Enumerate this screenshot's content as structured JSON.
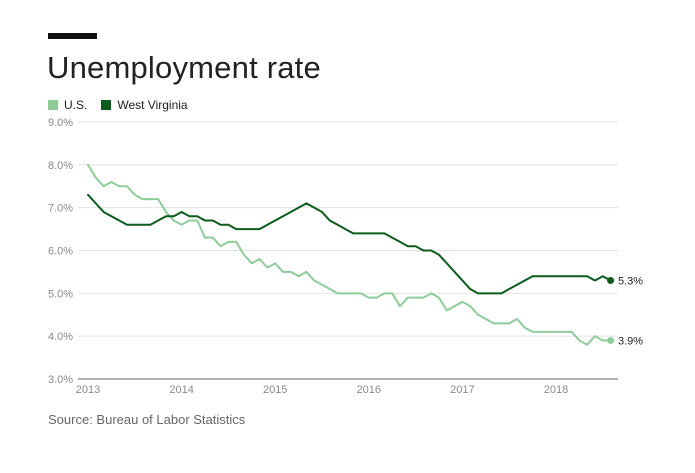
{
  "header": {
    "title": "Unemployment rate"
  },
  "footer": {
    "source": "Source: Bureau of Labor Statistics"
  },
  "colors": {
    "us": "#8fcc9a",
    "wv": "#0b5b1c",
    "grid": "#e2e2e2",
    "axis": "#666666",
    "accent_bar": "#111111"
  },
  "chart_data": {
    "type": "line",
    "title": "Unemployment rate",
    "xlabel": "",
    "ylabel": "",
    "x_start": "2013-01",
    "x_end": "2018-08",
    "x_ticks": [
      "2013",
      "2014",
      "2015",
      "2016",
      "2017",
      "2018"
    ],
    "y_ticks": [
      "3.0%",
      "4.0%",
      "5.0%",
      "6.0%",
      "7.0%",
      "8.0%",
      "9.0%"
    ],
    "ylim": [
      3.0,
      9.0
    ],
    "grid": true,
    "legend_position": "top-left",
    "x": [
      "2013-01",
      "2013-02",
      "2013-03",
      "2013-04",
      "2013-05",
      "2013-06",
      "2013-07",
      "2013-08",
      "2013-09",
      "2013-10",
      "2013-11",
      "2013-12",
      "2014-01",
      "2014-02",
      "2014-03",
      "2014-04",
      "2014-05",
      "2014-06",
      "2014-07",
      "2014-08",
      "2014-09",
      "2014-10",
      "2014-11",
      "2014-12",
      "2015-01",
      "2015-02",
      "2015-03",
      "2015-04",
      "2015-05",
      "2015-06",
      "2015-07",
      "2015-08",
      "2015-09",
      "2015-10",
      "2015-11",
      "2015-12",
      "2016-01",
      "2016-02",
      "2016-03",
      "2016-04",
      "2016-05",
      "2016-06",
      "2016-07",
      "2016-08",
      "2016-09",
      "2016-10",
      "2016-11",
      "2016-12",
      "2017-01",
      "2017-02",
      "2017-03",
      "2017-04",
      "2017-05",
      "2017-06",
      "2017-07",
      "2017-08",
      "2017-09",
      "2017-10",
      "2017-11",
      "2017-12",
      "2018-01",
      "2018-02",
      "2018-03",
      "2018-04",
      "2018-05",
      "2018-06",
      "2018-07",
      "2018-08"
    ],
    "series": [
      {
        "name": "U.S.",
        "color": "#8fcc9a",
        "end_label": "3.9%",
        "values": [
          8.0,
          7.7,
          7.5,
          7.6,
          7.5,
          7.5,
          7.3,
          7.2,
          7.2,
          7.2,
          6.9,
          6.7,
          6.6,
          6.7,
          6.7,
          6.3,
          6.3,
          6.1,
          6.2,
          6.2,
          5.9,
          5.7,
          5.8,
          5.6,
          5.7,
          5.5,
          5.5,
          5.4,
          5.5,
          5.3,
          5.2,
          5.1,
          5.0,
          5.0,
          5.0,
          5.0,
          4.9,
          4.9,
          5.0,
          5.0,
          4.7,
          4.9,
          4.9,
          4.9,
          5.0,
          4.9,
          4.6,
          4.7,
          4.8,
          4.7,
          4.5,
          4.4,
          4.3,
          4.3,
          4.3,
          4.4,
          4.2,
          4.1,
          4.1,
          4.1,
          4.1,
          4.1,
          4.1,
          3.9,
          3.8,
          4.0,
          3.9,
          3.9
        ]
      },
      {
        "name": "West Virginia",
        "color": "#0b5b1c",
        "end_label": "5.3%",
        "values": [
          7.3,
          7.1,
          6.9,
          6.8,
          6.7,
          6.6,
          6.6,
          6.6,
          6.6,
          6.7,
          6.8,
          6.8,
          6.9,
          6.8,
          6.8,
          6.7,
          6.7,
          6.6,
          6.6,
          6.5,
          6.5,
          6.5,
          6.5,
          6.6,
          6.7,
          6.8,
          6.9,
          7.0,
          7.1,
          7.0,
          6.9,
          6.7,
          6.6,
          6.5,
          6.4,
          6.4,
          6.4,
          6.4,
          6.4,
          6.3,
          6.2,
          6.1,
          6.1,
          6.0,
          6.0,
          5.9,
          5.7,
          5.5,
          5.3,
          5.1,
          5.0,
          5.0,
          5.0,
          5.0,
          5.1,
          5.2,
          5.3,
          5.4,
          5.4,
          5.4,
          5.4,
          5.4,
          5.4,
          5.4,
          5.4,
          5.3,
          5.4,
          5.3
        ]
      }
    ]
  }
}
